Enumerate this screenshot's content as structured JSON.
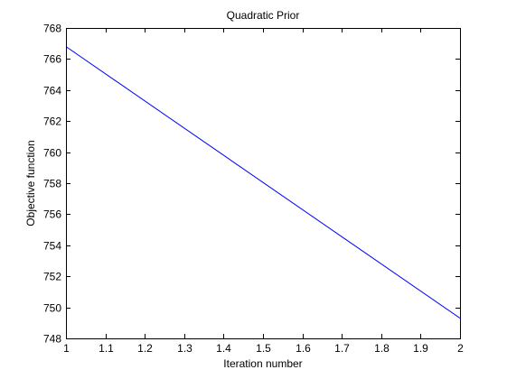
{
  "chart_data": {
    "type": "line",
    "title": "Quadratic Prior",
    "xlabel": "Iteration number",
    "ylabel": "Objective function",
    "xlim": [
      1,
      2
    ],
    "ylim": [
      748,
      768
    ],
    "xticks": [
      "1",
      "1.1",
      "1.2",
      "1.3",
      "1.4",
      "1.5",
      "1.6",
      "1.7",
      "1.8",
      "1.9",
      "2"
    ],
    "yticks": [
      "748",
      "750",
      "752",
      "754",
      "756",
      "758",
      "760",
      "762",
      "764",
      "766",
      "768"
    ],
    "grid": false,
    "series": [
      {
        "x": [
          1,
          2
        ],
        "y": [
          766.8,
          749.3
        ],
        "color": "#0000ff"
      }
    ]
  }
}
